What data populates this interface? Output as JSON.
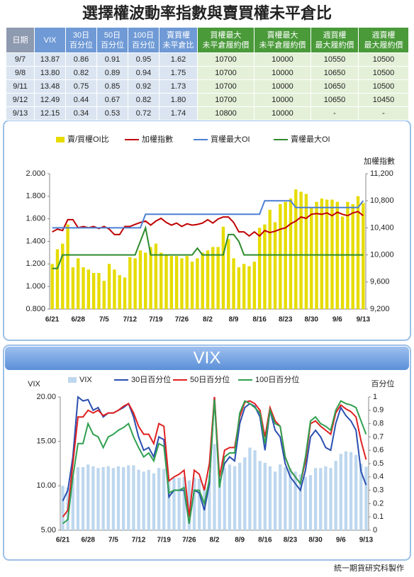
{
  "title": "選擇權波動率指數與賣買權未平倉比",
  "table": {
    "headers": [
      "日期",
      "VIX",
      "30日\n百分位",
      "50日\n百分位",
      "100日\n百分位",
      "賣買權\n未平倉比",
      "買權最大\n未平倉履約價",
      "賣權最大\n未平倉履約價",
      "週買權\n最大履約價",
      "週賣權\n最大履約價"
    ],
    "rows": [
      [
        "9/7",
        "13.87",
        "0.86",
        "0.91",
        "0.95",
        "1.62",
        "10700",
        "10000",
        "10550",
        "10500"
      ],
      [
        "9/8",
        "13.80",
        "0.82",
        "0.89",
        "0.94",
        "1.75",
        "10700",
        "10000",
        "10650",
        "10500"
      ],
      [
        "9/11",
        "13.48",
        "0.75",
        "0.85",
        "0.92",
        "1.73",
        "10700",
        "10000",
        "10650",
        "10500"
      ],
      [
        "9/12",
        "12.49",
        "0.44",
        "0.67",
        "0.82",
        "1.80",
        "10700",
        "10000",
        "10650",
        "10450"
      ],
      [
        "9/13",
        "12.15",
        "0.34",
        "0.53",
        "0.72",
        "1.74",
        "10800",
        "10000",
        "-",
        "-"
      ]
    ]
  },
  "chart_data": [
    {
      "type": "combo",
      "y2_label": "加權指數",
      "grid": false,
      "categories": [
        "6/21",
        null,
        null,
        null,
        null,
        "6/28",
        null,
        null,
        null,
        null,
        "7/5",
        null,
        null,
        null,
        null,
        "7/12",
        null,
        null,
        null,
        null,
        "7/19",
        null,
        null,
        null,
        null,
        "7/26",
        null,
        null,
        null,
        null,
        "8/2",
        null,
        null,
        null,
        null,
        "8/9",
        null,
        null,
        null,
        null,
        "8/16",
        null,
        null,
        null,
        null,
        "8/23",
        null,
        null,
        null,
        null,
        "8/30",
        null,
        null,
        null,
        null,
        "9/6",
        null,
        null,
        null,
        null,
        "9/13"
      ],
      "ylim": [
        0.8,
        2.0
      ],
      "yticks": [
        {
          "value": 0.8,
          "label": "0.800"
        },
        {
          "value": 1.0,
          "label": "1.000"
        },
        {
          "value": 1.2,
          "label": "1.200"
        },
        {
          "value": 1.4,
          "label": "1.400"
        },
        {
          "value": 1.6,
          "label": "1.600"
        },
        {
          "value": 1.8,
          "label": "1.800"
        },
        {
          "value": 2.0,
          "label": "2.000"
        }
      ],
      "y2lim": [
        9200,
        11200
      ],
      "y2ticks": [
        {
          "value": 9200,
          "label": "9,200"
        },
        {
          "value": 9600,
          "label": "9,600"
        },
        {
          "value": 10000,
          "label": "10,000"
        },
        {
          "value": 10400,
          "label": "10,400"
        },
        {
          "value": 10800,
          "label": "10,800"
        },
        {
          "value": 11200,
          "label": "11,200"
        }
      ],
      "series": [
        {
          "name": "賣/買權OI比",
          "type": "bar",
          "color": "#e6dc00",
          "values": [
            1.2,
            1.33,
            1.38,
            1.55,
            1.17,
            1.25,
            1.17,
            1.15,
            1.12,
            1.12,
            1.05,
            1.2,
            1.15,
            1.1,
            1.08,
            1.26,
            1.25,
            1.32,
            1.3,
            1.35,
            1.38,
            1.3,
            1.28,
            1.27,
            1.27,
            1.25,
            1.27,
            1.22,
            1.25,
            1.3,
            1.32,
            1.35,
            1.35,
            1.53,
            1.42,
            1.25,
            1.17,
            1.2,
            1.18,
            1.22,
            1.52,
            1.55,
            1.68,
            1.57,
            1.73,
            1.75,
            1.78,
            1.86,
            1.84,
            1.82,
            1.7,
            1.75,
            1.78,
            1.77,
            1.77,
            1.75,
            1.62,
            1.75,
            1.73,
            1.8,
            1.74
          ]
        },
        {
          "name": "加權指數",
          "type": "line",
          "axis": "y2",
          "color": "#c00000",
          "values": [
            10340,
            10380,
            10360,
            10520,
            10520,
            10400,
            10420,
            10400,
            10420,
            10390,
            10420,
            10380,
            10300,
            10300,
            10420,
            10420,
            10450,
            10480,
            10500,
            10440,
            10500,
            10540,
            10480,
            10440,
            10470,
            10420,
            10460,
            10440,
            10450,
            10470,
            10520,
            10470,
            10530,
            10560,
            10560,
            10480,
            10340,
            10340,
            10280,
            10340,
            10280,
            10360,
            10330,
            10350,
            10380,
            10400,
            10460,
            10500,
            10560,
            10540,
            10600,
            10610,
            10600,
            10620,
            10580,
            10630,
            10600,
            10580,
            10620,
            10640,
            10580
          ]
        },
        {
          "name": "買權最大OI",
          "type": "line",
          "axis": "y2",
          "color": "#4a7fd4",
          "values": [
            10400,
            10400,
            10400,
            10400,
            10400,
            10400,
            10400,
            10400,
            10400,
            10400,
            10400,
            10400,
            10400,
            10400,
            10400,
            10400,
            10400,
            10400,
            10600,
            10600,
            10600,
            10600,
            10600,
            10600,
            10600,
            10600,
            10600,
            10600,
            10600,
            10600,
            10600,
            10600,
            10600,
            10600,
            10600,
            10600,
            10600,
            10600,
            10600,
            10600,
            10600,
            10800,
            10800,
            10800,
            10800,
            10800,
            10800,
            10700,
            10700,
            10700,
            10700,
            10700,
            10700,
            10700,
            10700,
            10700,
            10700,
            10700,
            10700,
            10700,
            10800
          ]
        },
        {
          "name": "賣權最大OI",
          "type": "line",
          "axis": "y2",
          "color": "#2e8b2e",
          "values": [
            9800,
            9800,
            10000,
            10000,
            10000,
            10000,
            10000,
            10000,
            10000,
            10000,
            10000,
            10000,
            10000,
            10000,
            10000,
            10000,
            10000,
            10200,
            10400,
            10000,
            10000,
            10000,
            10000,
            10000,
            10000,
            10000,
            10000,
            10000,
            10100,
            10000,
            10000,
            10000,
            10000,
            10000,
            10300,
            10300,
            10200,
            10000,
            10000,
            10000,
            10000,
            10000,
            10000,
            10000,
            10000,
            10000,
            10000,
            10000,
            10000,
            10000,
            10000,
            10000,
            10000,
            10000,
            10000,
            10000,
            10000,
            10000,
            10000,
            10000,
            10000
          ]
        }
      ]
    },
    {
      "type": "combo",
      "title": "VIX",
      "y_label": "VIX",
      "y2_label": "百分位",
      "grid": false,
      "categories": [
        "6/21",
        null,
        null,
        null,
        null,
        "6/28",
        null,
        null,
        null,
        null,
        "7/5",
        null,
        null,
        null,
        null,
        "7/12",
        null,
        null,
        null,
        null,
        "7/19",
        null,
        null,
        null,
        null,
        "7/26",
        null,
        null,
        null,
        null,
        "8/2",
        null,
        null,
        null,
        null,
        "8/9",
        null,
        null,
        null,
        null,
        "8/16",
        null,
        null,
        null,
        null,
        "8/23",
        null,
        null,
        null,
        null,
        "8/30",
        null,
        null,
        null,
        null,
        "9/6",
        null,
        null,
        null,
        null,
        "9/13"
      ],
      "ylim": [
        5,
        20
      ],
      "yticks": [
        {
          "value": 5,
          "label": "5.00"
        },
        {
          "value": 10,
          "label": "10.00"
        },
        {
          "value": 15,
          "label": "15.00"
        },
        {
          "value": 20,
          "label": "20.00"
        }
      ],
      "y2lim": [
        0,
        1
      ],
      "y2ticks": [
        0,
        0.1,
        0.2,
        0.3,
        0.4,
        0.5,
        0.6,
        0.7,
        0.8,
        0.9,
        1
      ],
      "series": [
        {
          "name": "VIX",
          "type": "bar",
          "color": "#bdd7ee",
          "values": [
            10.0,
            9.8,
            11.0,
            12.1,
            12.1,
            12.4,
            12.2,
            12.0,
            12.1,
            12.2,
            12.0,
            12.2,
            12.1,
            12.3,
            12.3,
            11.8,
            11.6,
            11.8,
            11.4,
            12.0,
            11.9,
            10.6,
            10.9,
            10.9,
            11.0,
            10.6,
            10.9,
            10.8,
            10.2,
            11.2,
            14.7,
            10.7,
            12.0,
            12.4,
            12.2,
            12.6,
            13.2,
            14.3,
            14.0,
            12.8,
            12.6,
            12.2,
            11.6,
            12.4,
            12.1,
            12.0,
            11.6,
            11.3,
            11.0,
            11.2,
            12.0,
            12.0,
            12.2,
            12.0,
            12.8,
            13.6,
            13.87,
            13.8,
            13.48,
            12.49,
            12.15
          ]
        },
        {
          "name": "30日百分位",
          "type": "line",
          "axis": "y2",
          "color": "#2a4fb0",
          "values": [
            0.22,
            0.3,
            0.55,
            1.0,
            0.97,
            0.98,
            0.9,
            0.92,
            0.85,
            0.88,
            0.88,
            0.9,
            0.92,
            0.95,
            0.85,
            0.7,
            0.6,
            0.62,
            0.55,
            0.7,
            0.68,
            0.25,
            0.3,
            0.3,
            0.3,
            0.05,
            0.3,
            0.28,
            0.15,
            0.35,
            1.0,
            0.35,
            0.5,
            0.55,
            0.52,
            0.8,
            0.92,
            0.95,
            0.93,
            0.85,
            0.6,
            0.9,
            0.75,
            0.7,
            0.5,
            0.4,
            0.35,
            0.3,
            0.45,
            0.7,
            0.75,
            0.7,
            0.62,
            0.6,
            0.8,
            0.92,
            0.86,
            0.82,
            0.75,
            0.44,
            0.34
          ]
        },
        {
          "name": "50日百分位",
          "type": "line",
          "axis": "y2",
          "color": "#e02020",
          "values": [
            0.1,
            0.15,
            0.5,
            0.85,
            0.85,
            0.9,
            0.88,
            0.9,
            0.86,
            0.88,
            0.88,
            0.9,
            0.93,
            0.95,
            0.88,
            0.78,
            0.72,
            0.72,
            0.65,
            0.8,
            0.78,
            0.37,
            0.4,
            0.42,
            0.45,
            0.1,
            0.45,
            0.42,
            0.3,
            0.5,
            1.0,
            0.4,
            0.6,
            0.62,
            0.62,
            0.85,
            0.96,
            0.97,
            0.95,
            0.9,
            0.7,
            0.92,
            0.82,
            0.78,
            0.55,
            0.45,
            0.4,
            0.35,
            0.52,
            0.8,
            0.82,
            0.78,
            0.75,
            0.72,
            0.88,
            0.94,
            0.91,
            0.89,
            0.85,
            0.67,
            0.53
          ]
        },
        {
          "name": "100日百分位",
          "type": "line",
          "axis": "y2",
          "color": "#30a050",
          "values": [
            0.05,
            0.08,
            0.4,
            0.65,
            0.65,
            0.8,
            0.72,
            0.7,
            0.62,
            0.7,
            0.72,
            0.75,
            0.77,
            0.8,
            0.7,
            0.62,
            0.55,
            0.58,
            0.52,
            0.65,
            0.63,
            0.28,
            0.3,
            0.3,
            0.32,
            0.05,
            0.3,
            0.3,
            0.2,
            0.38,
            0.98,
            0.32,
            0.55,
            0.58,
            0.58,
            0.88,
            0.97,
            0.95,
            0.92,
            0.88,
            0.65,
            0.9,
            0.8,
            0.78,
            0.55,
            0.45,
            0.4,
            0.35,
            0.55,
            0.82,
            0.85,
            0.8,
            0.78,
            0.75,
            0.9,
            0.97,
            0.95,
            0.94,
            0.92,
            0.82,
            0.72
          ]
        }
      ]
    }
  ],
  "footer": "統一期貨研究科製作"
}
